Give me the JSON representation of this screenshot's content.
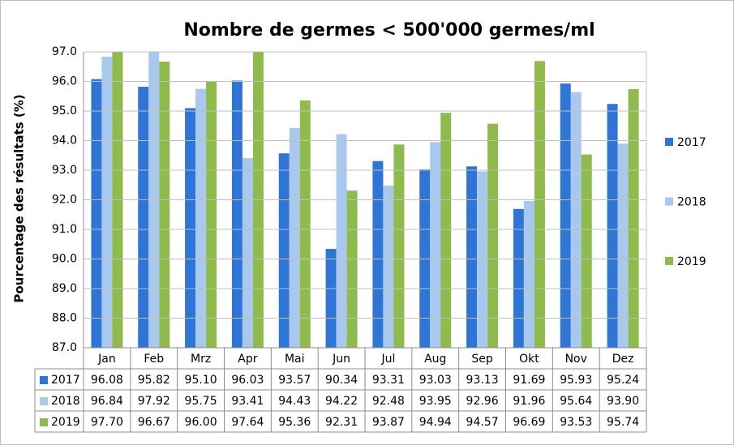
{
  "chart_data": {
    "type": "bar",
    "title": "Nombre de germes < 500'000 germes/ml",
    "y_label": "Pourcentage des résultats (%)",
    "categories": [
      "Jan",
      "Feb",
      "Mrz",
      "Apr",
      "Mai",
      "Jun",
      "Jul",
      "Aug",
      "Sep",
      "Okt",
      "Nov",
      "Dez"
    ],
    "series": [
      {
        "name": "2017",
        "color": "#2e75d6",
        "values": [
          96.08,
          95.82,
          95.1,
          96.03,
          93.57,
          90.34,
          93.31,
          93.03,
          93.13,
          91.69,
          95.93,
          95.24
        ],
        "value_labels": [
          "96.08",
          "95.82",
          "95.10",
          "96.03",
          "93.57",
          "90.34",
          "93.31",
          "93.03",
          "93.13",
          "91.69",
          "95.93",
          "95.24"
        ]
      },
      {
        "name": "2018",
        "color": "#a9c8ee",
        "values": [
          96.84,
          97.92,
          95.75,
          93.41,
          94.43,
          94.22,
          92.48,
          93.95,
          92.96,
          91.96,
          95.64,
          93.9
        ],
        "value_labels": [
          "96.84",
          "97.92",
          "95.75",
          "93.41",
          "94.43",
          "94.22",
          "92.48",
          "93.95",
          "92.96",
          "91.96",
          "95.64",
          "93.90"
        ]
      },
      {
        "name": "2019",
        "color": "#8fba4c",
        "values": [
          97.7,
          96.67,
          96.0,
          97.64,
          95.36,
          92.31,
          93.87,
          94.94,
          94.57,
          96.69,
          93.53,
          95.74
        ],
        "value_labels": [
          "97.70",
          "96.67",
          "96.00",
          "97.64",
          "95.36",
          "92.31",
          "93.87",
          "94.94",
          "94.57",
          "96.69",
          "93.53",
          "95.74"
        ]
      }
    ],
    "ylim": [
      87,
      97
    ],
    "yticks": [
      {
        "value": 87,
        "label": "87.0"
      },
      {
        "value": 88,
        "label": "88.0"
      },
      {
        "value": 89,
        "label": "89.0"
      },
      {
        "value": 90,
        "label": "90.0"
      },
      {
        "value": 91,
        "label": "91.0"
      },
      {
        "value": 92,
        "label": "92.0"
      },
      {
        "value": 93,
        "label": "93.0"
      },
      {
        "value": 94,
        "label": "94.0"
      },
      {
        "value": 95,
        "label": "95.0"
      },
      {
        "value": 96,
        "label": "96.0"
      },
      {
        "value": 97,
        "label": "97.0"
      }
    ],
    "grid": true,
    "legend": "right",
    "data_table": true
  }
}
